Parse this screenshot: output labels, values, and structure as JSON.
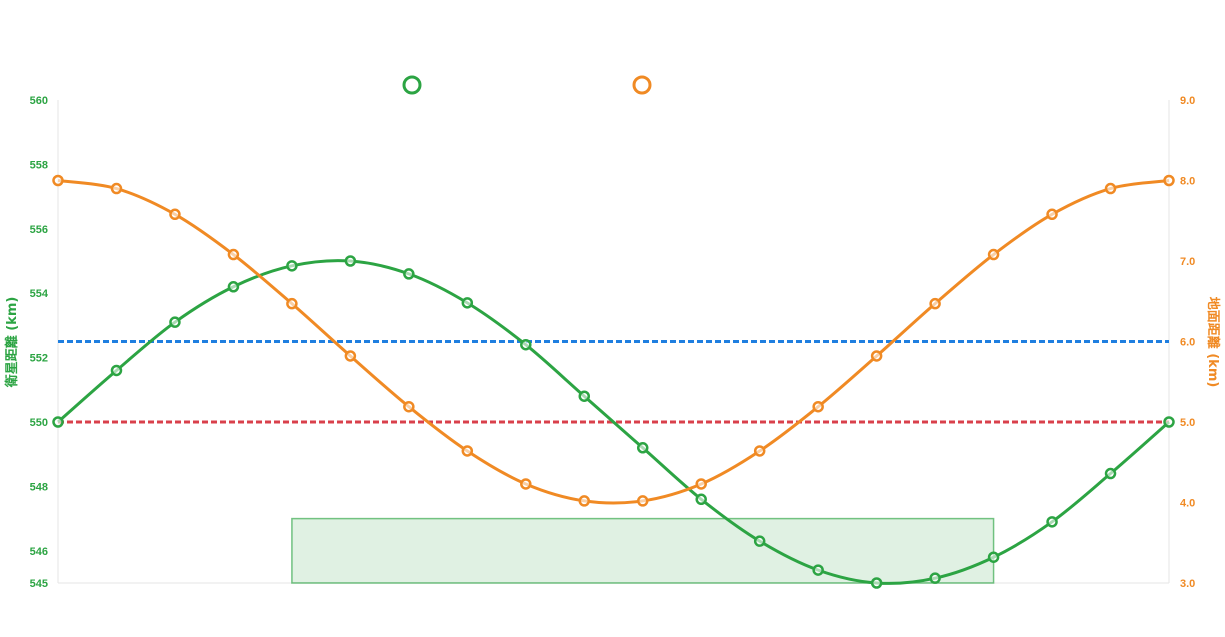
{
  "chart_data": {
    "type": "line",
    "title": "",
    "x": [
      0,
      1,
      2,
      3,
      4,
      5,
      6,
      7,
      8,
      9,
      10,
      11,
      12,
      13,
      14,
      15,
      16,
      17,
      18,
      19
    ],
    "series": [
      {
        "axis": "left",
        "color": "#2ca443",
        "values": [
          550.0,
          551.6,
          553.1,
          554.2,
          554.85,
          555.0,
          554.6,
          553.7,
          552.4,
          550.8,
          549.2,
          547.6,
          546.3,
          545.4,
          545.0,
          545.15,
          545.8,
          546.9,
          548.4,
          550.0
        ]
      },
      {
        "axis": "right",
        "color": "#f08a24",
        "values": [
          8.0,
          7.9,
          7.58,
          7.08,
          6.47,
          5.82,
          5.19,
          4.64,
          4.23,
          4.02,
          4.02,
          4.23,
          4.64,
          5.19,
          5.82,
          6.47,
          7.08,
          7.58,
          7.9,
          8.0
        ]
      }
    ],
    "reference_lines": [
      {
        "axis": "left",
        "value": 552.5,
        "color": "#1f7fe0",
        "style": "dashed"
      },
      {
        "axis": "left",
        "value": 550.0,
        "color": "#d9404b",
        "style": "dashed"
      }
    ],
    "highlight_band": {
      "x_start": 4,
      "x_end": 16,
      "y_bottom": 545,
      "y_top": 547,
      "color": "#2ca443"
    },
    "y_left": {
      "label": "衛星距離 (km)",
      "ylim": [
        545,
        560
      ],
      "ticks": [
        545,
        546,
        548,
        550,
        552,
        554,
        556,
        558,
        560
      ],
      "tick_labels": [
        "545",
        "546",
        "548",
        "550",
        "552",
        "554",
        "556",
        "558",
        "560"
      ],
      "color": "#2ca443"
    },
    "y_right": {
      "label": "地面距離 (km)",
      "ylim": [
        3.0,
        9.0
      ],
      "ticks": [
        3,
        4,
        5,
        6,
        7,
        8,
        9
      ],
      "tick_labels": [
        "3.0",
        "4.0",
        "5.0",
        "6.0",
        "7.0",
        "8.0",
        "9.0"
      ],
      "color": "#f08a24"
    },
    "legend": {
      "placement": "top-center",
      "entries": [
        {
          "color": "#2ca443"
        },
        {
          "color": "#f08a24"
        }
      ]
    },
    "grid": false
  }
}
